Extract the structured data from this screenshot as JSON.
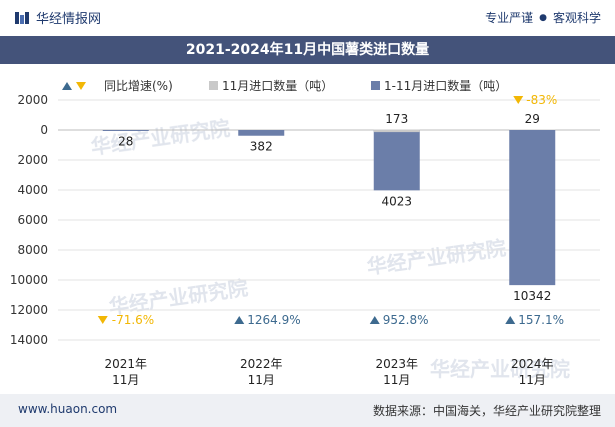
{
  "brand": {
    "name": "华经情报网"
  },
  "tagline": {
    "item1": "专业严谨",
    "item2": "客观科学"
  },
  "watermark": {
    "text": "华经产业研究院",
    "url": "www.huaon.com"
  },
  "footer": {
    "url": "www.huaon.com",
    "source": "数据来源：中国海关，华经产业研究院整理"
  },
  "colors": {
    "bar_cumulative": "#6b7ea9",
    "bar_monthly": "#c9c9c9",
    "up": "#3d6a8f",
    "down": "#f2b705",
    "title_bg": "#44537a"
  },
  "chart_data": {
    "type": "bar",
    "title": "2021-2024年11月中国薯类进口数量",
    "categories": [
      [
        "2021年",
        "11月"
      ],
      [
        "2022年",
        "11月"
      ],
      [
        "2023年",
        "11月"
      ],
      [
        "2024年",
        "11月"
      ]
    ],
    "legend_position": "top-left",
    "legend": [
      {
        "key": "growth",
        "label": "同比增速(%)",
        "marker": "triangles"
      },
      {
        "key": "monthly",
        "label": "11月进口数量（吨）",
        "marker": "square"
      },
      {
        "key": "cumulative",
        "label": "1-11月进口数量（吨）",
        "marker": "square"
      }
    ],
    "series": [
      {
        "name": "11月进口数量（吨）",
        "values": [
          0,
          0,
          173,
          29
        ],
        "labels": [
          "",
          "",
          "173",
          "29"
        ]
      },
      {
        "name": "1-11月进口数量（吨）",
        "values": [
          28,
          382,
          4023,
          10342
        ],
        "labels": [
          "28",
          "382",
          "4023",
          "10342"
        ]
      }
    ],
    "growth": [
      {
        "value": -71.6,
        "label": "-71.6%",
        "direction": "down"
      },
      {
        "value": 1264.9,
        "label": "1264.9%",
        "direction": "up"
      },
      {
        "value": 952.8,
        "label": "952.8%",
        "direction": "up"
      },
      {
        "value": 157.1,
        "label": "157.1%",
        "direction": "up"
      }
    ],
    "monthly_growth_2024": {
      "value": -83,
      "label": "-83%",
      "direction": "down"
    },
    "y_axis": {
      "reversed": true,
      "min": -2000,
      "max": 14000,
      "ticks": [
        2000,
        0,
        2000,
        4000,
        6000,
        8000,
        10000,
        12000,
        14000
      ],
      "tick_values": [
        -2000,
        0,
        2000,
        4000,
        6000,
        8000,
        10000,
        12000,
        14000
      ]
    },
    "grid": true
  }
}
